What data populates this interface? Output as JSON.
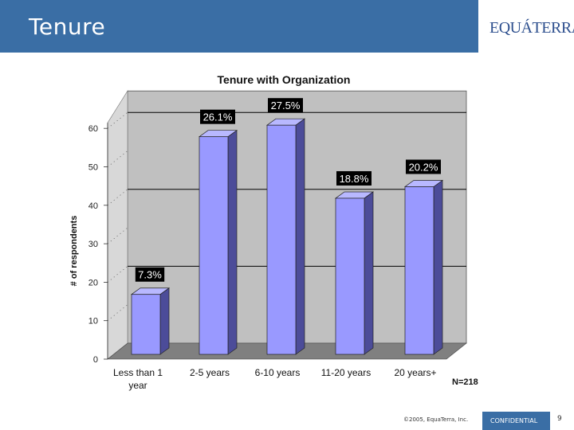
{
  "header": {
    "title": "Tenure",
    "logo_text": "EQUÁTERRA"
  },
  "footer": {
    "copyright": "©2005, EquaTerra, Inc.",
    "confidential": "CONFIDENTIAL",
    "page_number": "9"
  },
  "note": "N=218",
  "chart_data": {
    "type": "bar",
    "title": "Tenure with Organization",
    "xlabel": "",
    "ylabel": "# of respondents",
    "categories": [
      [
        "Less than 1",
        "year"
      ],
      [
        "2-5 years"
      ],
      [
        "6-10 years"
      ],
      [
        "11-20 years"
      ],
      [
        "20 years+"
      ]
    ],
    "values": [
      16,
      57,
      60,
      41,
      44
    ],
    "data_labels": [
      "7.3%",
      "26.1%",
      "27.5%",
      "18.8%",
      "20.2%"
    ],
    "ylim": [
      0,
      60
    ],
    "yticks": [
      0,
      10,
      20,
      30,
      40,
      50,
      60
    ],
    "grid": true,
    "bar_color": "#9999ff",
    "bar_side_color": "#4c4c99",
    "wall_color": "#c0c0c0",
    "floor_color": "#808080"
  }
}
